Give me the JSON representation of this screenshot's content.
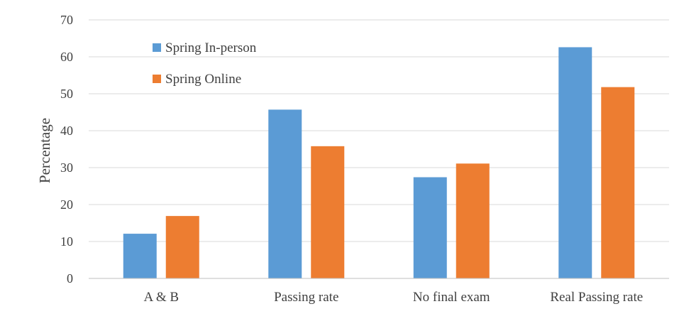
{
  "chart_data": {
    "type": "bar",
    "title": "",
    "xlabel": "",
    "ylabel": "Percentage",
    "ylim": [
      0,
      70
    ],
    "yticks": [
      0,
      10,
      20,
      30,
      40,
      50,
      60,
      70
    ],
    "grid": true,
    "legend_position": "top-left",
    "categories": [
      "A & B",
      "Passing rate",
      "No final exam",
      "Real Passing rate"
    ],
    "series": [
      {
        "name": "Spring In-person",
        "color": "#5B9BD5",
        "values": [
          12.1,
          45.7,
          27.4,
          62.6
        ]
      },
      {
        "name": "Spring Online",
        "color": "#ED7D31",
        "values": [
          16.9,
          35.8,
          31.1,
          51.8
        ]
      }
    ]
  }
}
